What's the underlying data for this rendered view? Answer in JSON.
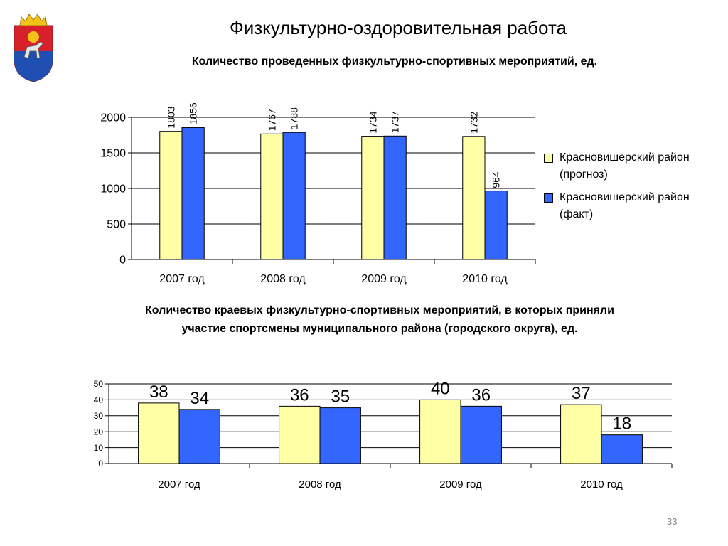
{
  "slide": {
    "title": "Физкультурно-оздоровительная работа",
    "page_number": "33"
  },
  "colors": {
    "forecast": "#FFFFA6",
    "fact": "#3366FF",
    "bar_border": "#000000",
    "grid": "#000000"
  },
  "chart_data": [
    {
      "type": "bar",
      "title": "Количество проведенных физкультурно-спортивных мероприятий, ед.",
      "categories": [
        "2007 год",
        "2008 год",
        "2009 год",
        "2010 год"
      ],
      "series": [
        {
          "name": "Красновишерский район (прогноз)",
          "values": [
            1803,
            1767,
            1734,
            1732
          ],
          "color": "#FFFFA6"
        },
        {
          "name": "Красновишерский район (факт)",
          "values": [
            1856,
            1788,
            1737,
            964
          ],
          "color": "#3366FF"
        }
      ],
      "ylim": [
        0,
        2000
      ],
      "yticks": [
        0,
        500,
        1000,
        1500,
        2000
      ],
      "grid": true,
      "legend": "right",
      "data_labels": "vertical"
    },
    {
      "type": "bar",
      "title": "Количество краевых физкультурно-спортивных мероприятий, в которых приняли участие спортсмены муниципального района (городского округа), ед.",
      "categories": [
        "2007 год",
        "2008 год",
        "2009 год",
        "2010 год"
      ],
      "series": [
        {
          "values": [
            38,
            36,
            40,
            37
          ],
          "color": "#FFFFA6"
        },
        {
          "values": [
            34,
            35,
            36,
            18
          ],
          "color": "#3366FF"
        }
      ],
      "ylim": [
        0,
        50
      ],
      "yticks": [
        0,
        10,
        20,
        30,
        40,
        50
      ],
      "grid": true,
      "legend": "none",
      "data_labels": "horizontal"
    }
  ]
}
